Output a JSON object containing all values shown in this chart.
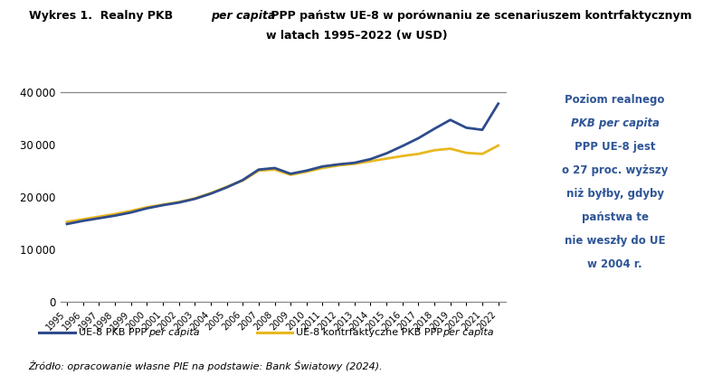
{
  "years": [
    1995,
    1996,
    1997,
    1998,
    1999,
    2000,
    2001,
    2002,
    2003,
    2004,
    2005,
    2006,
    2007,
    2008,
    2009,
    2010,
    2011,
    2012,
    2013,
    2014,
    2015,
    2016,
    2017,
    2018,
    2019,
    2020,
    2021,
    2022
  ],
  "blue_line": [
    14800,
    15400,
    15900,
    16400,
    17000,
    17800,
    18400,
    18900,
    19600,
    20600,
    21800,
    23200,
    25200,
    25500,
    24400,
    25000,
    25800,
    26200,
    26500,
    27200,
    28300,
    29700,
    31200,
    33000,
    34700,
    33200,
    32800,
    37800
  ],
  "yellow_line": [
    15200,
    15700,
    16200,
    16700,
    17300,
    18000,
    18500,
    19000,
    19700,
    20700,
    21900,
    23100,
    25000,
    25200,
    24200,
    24800,
    25500,
    26000,
    26300,
    26800,
    27300,
    27800,
    28200,
    28900,
    29200,
    28400,
    28200,
    29800
  ],
  "blue_color": "#2e4b8c",
  "yellow_color": "#e8b820",
  "ylim": [
    0,
    40000
  ],
  "yticks": [
    0,
    10000,
    20000,
    30000,
    40000
  ],
  "annotation_color": "#2e5596",
  "annotation_lines": [
    [
      "Poziom realnego",
      false
    ],
    [
      "PKB per capita",
      true
    ],
    [
      "PPP UE-8 jest",
      false
    ],
    [
      "o 27 proc. wyższy",
      false
    ],
    [
      "niż byłby, gdyby",
      false
    ],
    [
      "państwa te",
      false
    ],
    [
      "nie weszły do UE",
      false
    ],
    [
      "w 2004 r.",
      false
    ]
  ],
  "source_text": "Źródło: opracowanie własne PIE na podstawie: Bank Światowy (2024).",
  "background_color": "#ffffff"
}
